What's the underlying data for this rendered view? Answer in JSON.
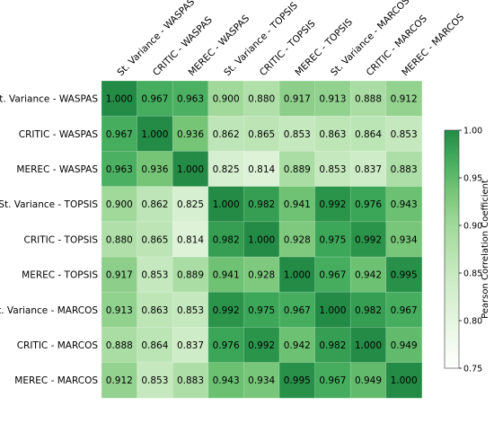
{
  "chart_data": {
    "type": "heatmap",
    "rows": [
      "St. Variance - WASPAS",
      "CRITIC - WASPAS",
      "MEREC - WASPAS",
      "St. Variance - TOPSIS",
      "CRITIC - TOPSIS",
      "MEREC - TOPSIS",
      "St. Variance - MARCOS",
      "CRITIC - MARCOS",
      "MEREC - MARCOS"
    ],
    "columns": [
      "St. Variance - WASPAS",
      "CRITIC - WASPAS",
      "MEREC - WASPAS",
      "St. Variance - TOPSIS",
      "CRITIC - TOPSIS",
      "MEREC - TOPSIS",
      "St. Variance - MARCOS",
      "CRITIC - MARCOS",
      "MEREC - MARCOS"
    ],
    "values": [
      [
        1.0,
        0.967,
        0.963,
        0.9,
        0.88,
        0.917,
        0.913,
        0.888,
        0.912
      ],
      [
        0.967,
        1.0,
        0.936,
        0.862,
        0.865,
        0.853,
        0.863,
        0.864,
        0.853
      ],
      [
        0.963,
        0.936,
        1.0,
        0.825,
        0.814,
        0.889,
        0.853,
        0.837,
        0.883
      ],
      [
        0.9,
        0.862,
        0.825,
        1.0,
        0.982,
        0.941,
        0.992,
        0.976,
        0.943
      ],
      [
        0.88,
        0.865,
        0.814,
        0.982,
        1.0,
        0.928,
        0.975,
        0.992,
        0.934
      ],
      [
        0.917,
        0.853,
        0.889,
        0.941,
        0.928,
        1.0,
        0.967,
        0.942,
        0.995
      ],
      [
        0.913,
        0.863,
        0.853,
        0.992,
        0.975,
        0.967,
        1.0,
        0.982,
        0.967
      ],
      [
        0.888,
        0.864,
        0.837,
        0.976,
        0.992,
        0.942,
        0.982,
        1.0,
        0.949
      ],
      [
        0.912,
        0.853,
        0.883,
        0.943,
        0.934,
        0.995,
        0.967,
        0.949,
        1.0
      ]
    ],
    "value_format": "3 decimals",
    "colormap": "Greens",
    "colorbar": {
      "label": "Pearson Correlation Coefficient",
      "range": [
        0.75,
        1.0
      ],
      "ticks": [
        "0.75",
        "0.80",
        "0.85",
        "0.90",
        "0.95",
        "1.00"
      ]
    }
  }
}
